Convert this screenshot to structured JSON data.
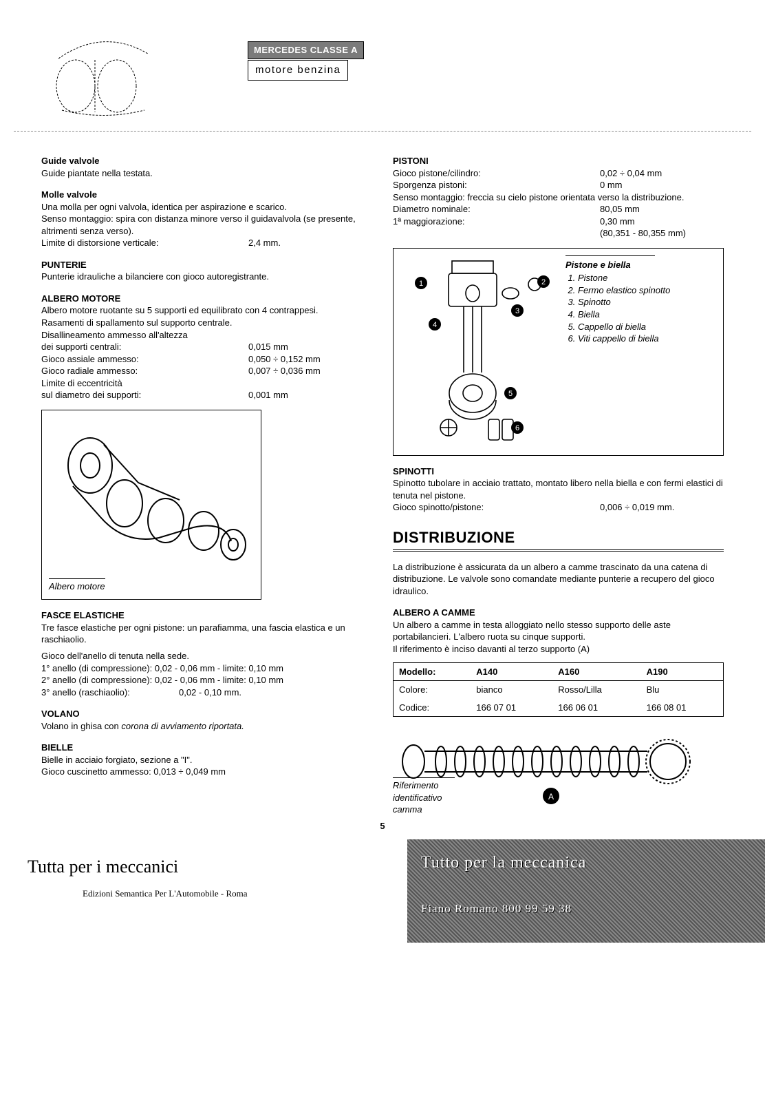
{
  "header": {
    "brand_badge": "MERCEDES CLASSE A",
    "subtitle": "motore benzina"
  },
  "left": {
    "guide_valvole": {
      "title": "Guide valvole",
      "text": "Guide piantate nella testata."
    },
    "molle_valvole": {
      "title": "Molle valvole",
      "text1": "Una molla per ogni valvola, identica per aspirazione e scarico.",
      "text2": "Senso montaggio: spira con distanza minore verso il guidavalvola (se presente, altrimenti senza verso).",
      "limite_label": "Limite di distorsione verticale:",
      "limite_val": "2,4 mm."
    },
    "punterie": {
      "title": "PUNTERIE",
      "text": "Punterie idrauliche a bilanciere con gioco autoregistrante."
    },
    "albero_motore": {
      "title": "ALBERO MOTORE",
      "text1": "Albero motore ruotante su 5 supporti ed equilibrato con 4 contrappesi.",
      "text2": "Rasamenti di spallamento sul supporto centrale.",
      "disall_label": "Disallineamento ammesso all'altezza",
      "supporti_label": "dei supporti centrali:",
      "supporti_val": "0,015 mm",
      "assiale_label": "Gioco assiale ammesso:",
      "assiale_val": "0,050 ÷ 0,152 mm",
      "radiale_label": "Gioco radiale ammesso:",
      "radiale_val": "0,007 ÷ 0,036 mm",
      "ecc_label": "Limite di eccentricità",
      "ecc_label2": "sul diametro dei supporti:",
      "ecc_val": "0,001 mm",
      "caption": "Albero motore"
    },
    "fasce": {
      "title": "FASCE ELASTICHE",
      "text1": "Tre fasce elastiche per ogni pistone: un parafiamma, una fascia elastica e un raschiaolio.",
      "text2": "Gioco dell'anello di tenuta nella sede.",
      "r1": "1° anello (di compressione): 0,02 - 0,06 mm - limite: 0,10 mm",
      "r2": "2° anello (di compressione): 0,02 - 0,06 mm - limite: 0,10 mm",
      "r3_label": "3° anello (raschiaolio):",
      "r3_val": "0,02 - 0,10 mm."
    },
    "volano": {
      "title": "VOLANO",
      "text_pre": "Volano in ghisa con ",
      "text_em": "corona di avviamento riportata."
    },
    "bielle": {
      "title": "BIELLE",
      "text1": "Bielle in acciaio forgiato, sezione a \"I\".",
      "text2": "Gioco cuscinetto ammesso: 0,013 ÷ 0,049 mm"
    }
  },
  "right": {
    "pistoni": {
      "title": "PISTONI",
      "gpc_label": "Gioco pistone/cilindro:",
      "gpc_val": "0,02 ÷ 0,04 mm",
      "sporg_label": "Sporgenza pistoni:",
      "sporg_val": "0 mm",
      "senso": "Senso montaggio: freccia su cielo pistone orientata verso la distribuzione.",
      "diam_label": "Diametro nominale:",
      "diam_val": "80,05 mm",
      "magg_label": "1ª maggiorazione:",
      "magg_val": "0,30 mm",
      "magg_range": "(80,351 - 80,355 mm)",
      "legend_title": "Pistone e biella",
      "legend": [
        "Pistone",
        "Fermo elastico spinotto",
        "Spinotto",
        "Biella",
        "Cappello di biella",
        "Viti cappello di biella"
      ]
    },
    "spinotti": {
      "title": "SPINOTTI",
      "text": "Spinotto tubolare in acciaio trattato, montato libero nella biella e con fermi elastici di tenuta nel pistone.",
      "gioco_label": "Gioco spinotto/pistone:",
      "gioco_val": "0,006 ÷ 0,019 mm."
    },
    "distribuzione": {
      "heading": "DISTRIBUZIONE",
      "text": "La distribuzione è assicurata da un albero a camme trascinato da una catena di distribuzione. Le valvole sono comandate mediante punterie a recupero del gioco idraulico."
    },
    "camme": {
      "title": "ALBERO A CAMME",
      "text1": "Un albero a camme in testa alloggiato nello stesso supporto delle aste portabilancieri. L'albero ruota su cinque supporti.",
      "text2": "Il riferimento è inciso davanti al terzo supporto (A)",
      "table": {
        "headers": [
          "Modello:",
          "A140",
          "A160",
          "A190"
        ],
        "rows": [
          [
            "Colore:",
            "bianco",
            "Rosso/Lilla",
            "Blu"
          ],
          [
            "Codice:",
            "166 07 01",
            "166 06 01",
            "166 08 01"
          ]
        ]
      },
      "fig_caption1": "Riferimento",
      "fig_caption2": "identificativo",
      "fig_caption3": "camma"
    }
  },
  "page_number": "5",
  "footer": {
    "left": "Tutta per i meccanici",
    "left_sub": "Edizioni Semantica Per L'Automobile - Roma",
    "right1": "Tutto per la meccanica",
    "right2": "Fiano Romano 800 99 59 38"
  }
}
